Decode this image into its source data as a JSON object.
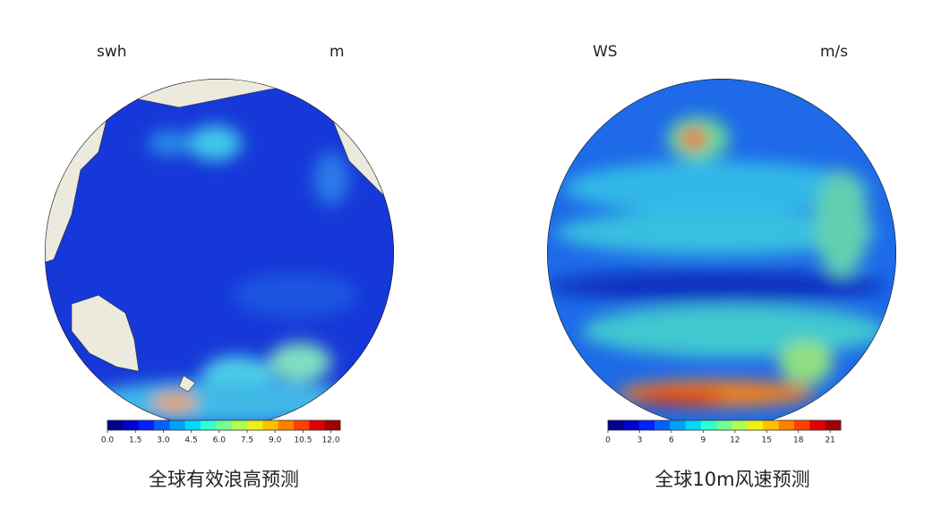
{
  "panels": [
    {
      "variable": "swh",
      "unit": "m",
      "colorbar": {
        "range": [
          0,
          12.5
        ],
        "ticks": [
          {
            "value": 0,
            "label": "0.0"
          },
          {
            "value": 1.5,
            "label": "1.5"
          },
          {
            "value": 3,
            "label": "3.0"
          },
          {
            "value": 4.5,
            "label": "4.5"
          },
          {
            "value": 6,
            "label": "6.0"
          },
          {
            "value": 7.5,
            "label": "7.5"
          },
          {
            "value": 9,
            "label": "9.0"
          },
          {
            "value": 10.5,
            "label": "10.5"
          },
          {
            "value": 12,
            "label": "12.0"
          }
        ]
      },
      "caption": "全球有效浪高预测"
    },
    {
      "variable": "WS",
      "unit": "m/s",
      "colorbar": {
        "range": [
          0,
          22
        ],
        "ticks": [
          0,
          3,
          6,
          9,
          12,
          15,
          18,
          21
        ]
      },
      "caption": "全球10m风速预测"
    }
  ]
}
